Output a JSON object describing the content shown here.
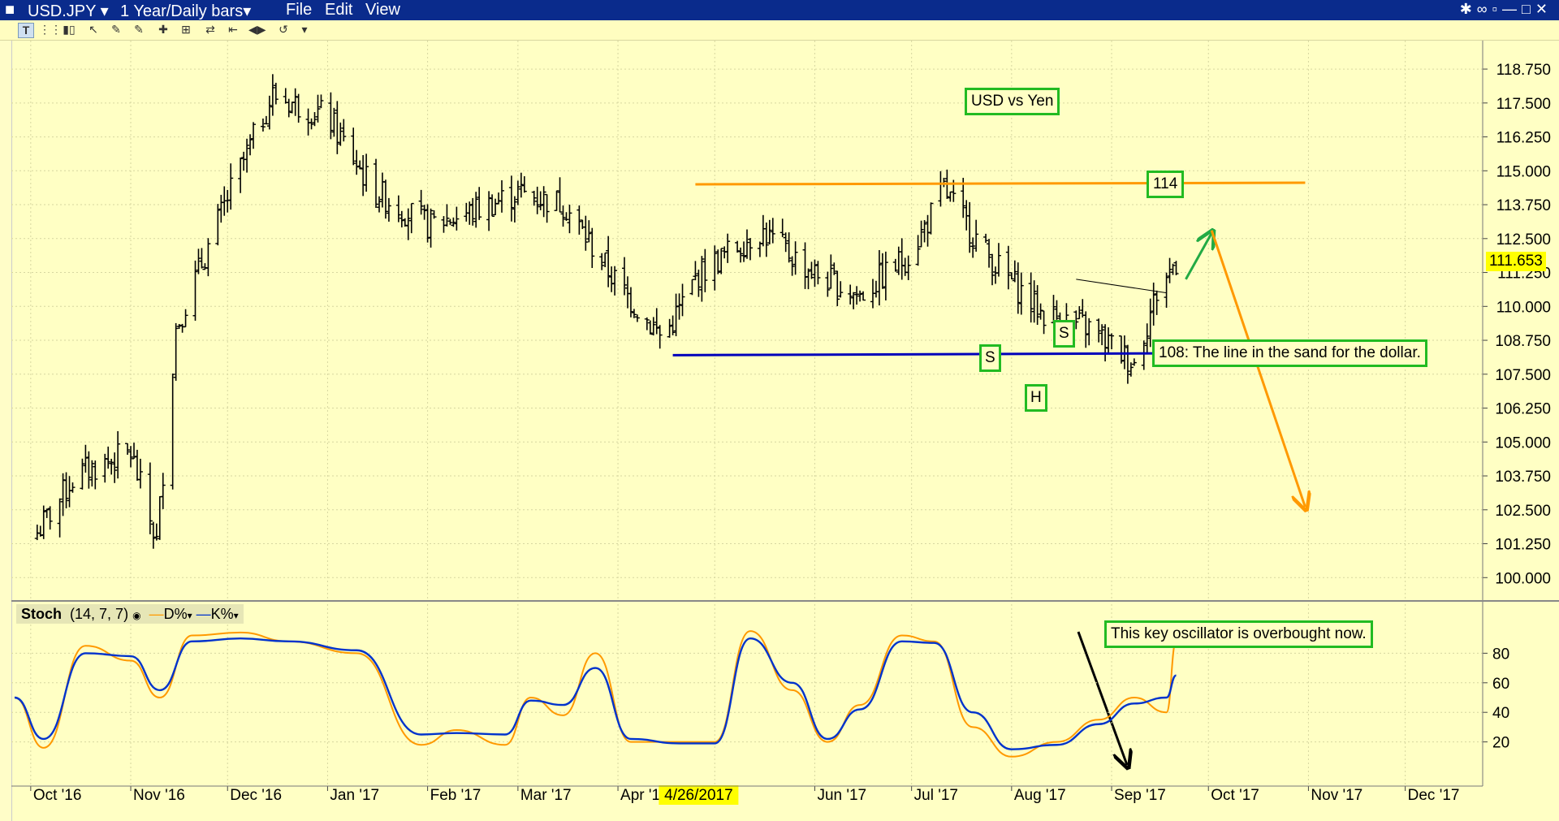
{
  "window": {
    "symbol": "USD.JPY",
    "period": "1 Year/Daily bars",
    "menus": [
      "File",
      "Edit",
      "View"
    ]
  },
  "colors": {
    "background": "#ffffc4",
    "titlebar": "#0a2b8c",
    "annotation_border": "#22bb22",
    "price_label_bg": "#ffff00",
    "resistance_line": "#ff9900",
    "support_line": "#0000bb",
    "stoch_d": "#ff9900",
    "stoch_k": "#0033cc"
  },
  "icons": [
    "text-tool-icon",
    "bars-icon",
    "candles-icon",
    "cursor-icon",
    "draw-icon",
    "measure-icon",
    "crosshair-icon",
    "zoom-icon",
    "pan-icon",
    "scale-icon",
    "settings-icon",
    "arrow-down-icon"
  ],
  "annotations": {
    "title_box": "USD vs Yen",
    "resistance_box": "114",
    "support_box": "108:  The line in the sand for the dollar.",
    "shoulder_left": "S",
    "head": "H",
    "shoulder_right": "S",
    "oscillator_box": "This key oscillator is overbought now."
  },
  "last_price": "111.653",
  "stoch_legend": {
    "name": "Stoch",
    "params": "(14, 7, 7)",
    "d_label": "D%",
    "k_label": "K%"
  },
  "x_axis": {
    "months": [
      "Oct '16",
      "Nov '16",
      "Dec '16",
      "Jan '17",
      "Feb '17",
      "Mar '17",
      "Apr '17",
      "Jun '17",
      "Jul '17",
      "Aug '17",
      "Sep '17",
      "Oct '17",
      "Nov '17",
      "Dec '17"
    ],
    "highlight_date": "4/26/2017"
  },
  "chart_data": [
    {
      "type": "ohlc",
      "title": "USD vs Yen",
      "x": [
        "2016-10-01",
        "2016-10-15",
        "2016-11-01",
        "2016-11-09",
        "2016-11-15",
        "2016-12-01",
        "2016-12-15",
        "2017-01-01",
        "2017-01-15",
        "2017-02-01",
        "2017-02-15",
        "2017-03-01",
        "2017-03-15",
        "2017-04-01",
        "2017-04-15",
        "2017-04-26",
        "2017-05-15",
        "2017-06-01",
        "2017-06-15",
        "2017-07-01",
        "2017-07-11",
        "2017-07-25",
        "2017-08-10",
        "2017-08-25",
        "2017-09-08",
        "2017-09-15",
        "2017-09-21"
      ],
      "y": [
        101.3,
        103.8,
        104.6,
        101.3,
        109.2,
        114.0,
        117.8,
        117.0,
        114.3,
        113.0,
        113.5,
        114.2,
        113.8,
        110.8,
        108.8,
        111.2,
        112.8,
        111.2,
        110.4,
        112.0,
        114.3,
        111.8,
        109.8,
        109.2,
        107.9,
        110.5,
        111.7
      ],
      "series": [
        {
          "name": "USD.JPY",
          "last": 111.653
        }
      ],
      "levels": [
        {
          "label": "114",
          "value": 114.5
        },
        {
          "label": "108:  The line in the sand for the dollar.",
          "value": 108.2
        }
      ],
      "ylim": [
        99.2,
        119.8
      ],
      "yticks": [
        100.0,
        101.25,
        102.5,
        103.75,
        105.0,
        106.25,
        107.5,
        108.75,
        110.0,
        111.25,
        112.5,
        113.75,
        115.0,
        116.25,
        117.5,
        118.75
      ],
      "ytick_labels": [
        "100.000",
        "101.250",
        "102.500",
        "103.750",
        "105.000",
        "106.250",
        "107.500",
        "108.750",
        "110.000",
        "111.250",
        "112.500",
        "113.750",
        "115.000",
        "116.250",
        "117.500",
        "118.750"
      ],
      "projection_up": {
        "from": [
          "2017-09-24",
          111.0
        ],
        "to": [
          "2017-10-02",
          112.7
        ]
      },
      "projection_down": {
        "from": [
          "2017-10-02",
          112.8
        ],
        "to": [
          "2017-10-31",
          102.6
        ]
      },
      "neckline": {
        "from": [
          "2017-08-21",
          111.0
        ],
        "to": [
          "2017-09-18",
          110.5
        ]
      },
      "grid": true
    },
    {
      "type": "line",
      "title": "Stoch (14, 7, 7)",
      "x": [
        "2016-09-26",
        "2016-10-05",
        "2016-10-18",
        "2016-11-01",
        "2016-11-10",
        "2016-11-20",
        "2016-12-05",
        "2016-12-20",
        "2017-01-10",
        "2017-01-30",
        "2017-02-10",
        "2017-02-25",
        "2017-03-05",
        "2017-03-15",
        "2017-03-25",
        "2017-04-05",
        "2017-04-20",
        "2017-05-01",
        "2017-05-12",
        "2017-05-25",
        "2017-06-05",
        "2017-06-15",
        "2017-06-28",
        "2017-07-08",
        "2017-07-20",
        "2017-08-01",
        "2017-08-15",
        "2017-08-28",
        "2017-09-08",
        "2017-09-18",
        "2017-09-21"
      ],
      "series": [
        {
          "name": "D%",
          "values": [
            50,
            16,
            85,
            75,
            50,
            92,
            94,
            88,
            80,
            18,
            28,
            18,
            50,
            38,
            80,
            20,
            20,
            20,
            95,
            55,
            20,
            45,
            92,
            88,
            30,
            10,
            20,
            35,
            50,
            40,
            88
          ]
        },
        {
          "name": "K%",
          "values": [
            50,
            22,
            80,
            78,
            55,
            88,
            90,
            88,
            82,
            25,
            26,
            25,
            48,
            45,
            70,
            22,
            19,
            19,
            90,
            60,
            22,
            42,
            88,
            87,
            40,
            15,
            18,
            32,
            46,
            50,
            65
          ]
        }
      ],
      "ylim": [
        0,
        100
      ],
      "yticks": [
        20,
        40,
        60,
        80
      ],
      "grid": true
    }
  ]
}
